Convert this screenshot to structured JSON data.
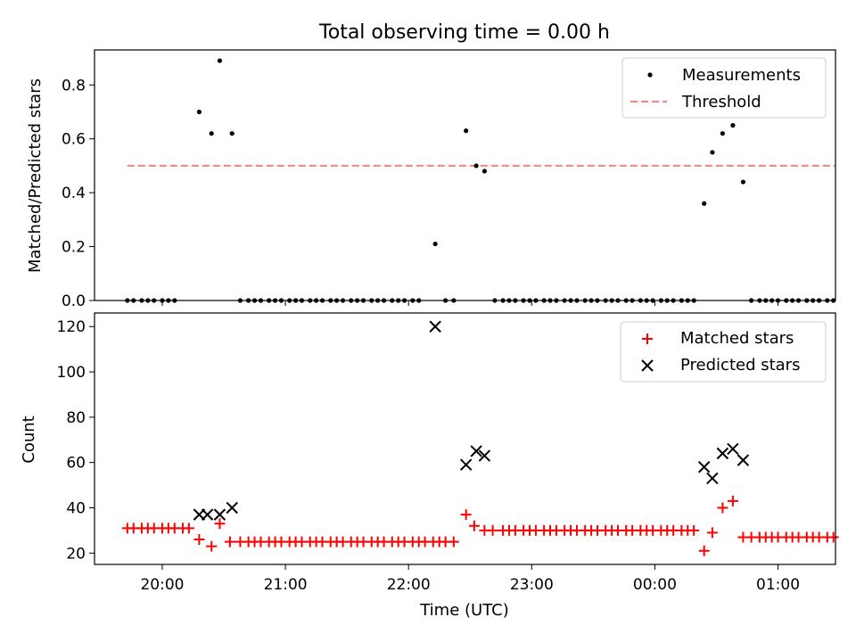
{
  "chart_data": [
    {
      "type": "scatter",
      "title": "Total observing time = 0.00 h",
      "xlabel": "",
      "ylabel": "Matched/Predicted stars",
      "ylim": [
        0,
        0.93
      ],
      "grid": false,
      "legend_position": "top-right",
      "x_ticks": [
        "20:00",
        "21:00",
        "22:00",
        "23:00",
        "00:00",
        "01:00"
      ],
      "y_ticks": [
        "0.0",
        "0.2",
        "0.4",
        "0.6",
        "0.8"
      ],
      "threshold": {
        "name": "Threshold",
        "value": 0.5,
        "x_range": [
          "19:43",
          "01:28"
        ],
        "color": "#ff7f7f",
        "style": "dashed"
      },
      "series": [
        {
          "name": "Measurements",
          "marker": "dot",
          "color": "#000000",
          "points": [
            [
              "19:43",
              0
            ],
            [
              "19:46",
              0
            ],
            [
              "19:50",
              0
            ],
            [
              "19:53",
              0
            ],
            [
              "19:56",
              0
            ],
            [
              "20:00",
              0
            ],
            [
              "20:03",
              0
            ],
            [
              "20:06",
              0
            ],
            [
              "20:18",
              0.7
            ],
            [
              "20:24",
              0.62
            ],
            [
              "20:28",
              0.89
            ],
            [
              "20:34",
              0.62
            ],
            [
              "20:38",
              0
            ],
            [
              "20:42",
              0
            ],
            [
              "20:45",
              0
            ],
            [
              "20:48",
              0
            ],
            [
              "20:52",
              0
            ],
            [
              "20:55",
              0
            ],
            [
              "20:58",
              0
            ],
            [
              "21:02",
              0
            ],
            [
              "21:05",
              0
            ],
            [
              "21:08",
              0
            ],
            [
              "21:12",
              0
            ],
            [
              "21:15",
              0
            ],
            [
              "21:18",
              0
            ],
            [
              "21:22",
              0
            ],
            [
              "21:25",
              0
            ],
            [
              "21:28",
              0
            ],
            [
              "21:32",
              0
            ],
            [
              "21:35",
              0
            ],
            [
              "21:38",
              0
            ],
            [
              "21:42",
              0
            ],
            [
              "21:45",
              0
            ],
            [
              "21:48",
              0
            ],
            [
              "21:52",
              0
            ],
            [
              "21:55",
              0
            ],
            [
              "21:58",
              0
            ],
            [
              "22:02",
              0
            ],
            [
              "22:05",
              0
            ],
            [
              "22:13",
              0.21
            ],
            [
              "22:18",
              0
            ],
            [
              "22:22",
              0
            ],
            [
              "22:28",
              0.63
            ],
            [
              "22:33",
              0.5
            ],
            [
              "22:37",
              0.48
            ],
            [
              "22:42",
              0
            ],
            [
              "22:46",
              0
            ],
            [
              "22:49",
              0
            ],
            [
              "22:52",
              0
            ],
            [
              "22:56",
              0
            ],
            [
              "22:59",
              0
            ],
            [
              "23:02",
              0
            ],
            [
              "23:06",
              0
            ],
            [
              "23:09",
              0
            ],
            [
              "23:12",
              0
            ],
            [
              "23:16",
              0
            ],
            [
              "23:19",
              0
            ],
            [
              "23:22",
              0
            ],
            [
              "23:26",
              0
            ],
            [
              "23:29",
              0
            ],
            [
              "23:32",
              0
            ],
            [
              "23:36",
              0
            ],
            [
              "23:39",
              0
            ],
            [
              "23:42",
              0
            ],
            [
              "23:46",
              0
            ],
            [
              "23:49",
              0
            ],
            [
              "23:53",
              0
            ],
            [
              "23:56",
              0
            ],
            [
              "23:59",
              0
            ],
            [
              "00:03",
              0
            ],
            [
              "00:06",
              0
            ],
            [
              "00:09",
              0
            ],
            [
              "00:13",
              0
            ],
            [
              "00:16",
              0
            ],
            [
              "00:19",
              0
            ],
            [
              "00:24",
              0.36
            ],
            [
              "00:28",
              0.55
            ],
            [
              "00:33",
              0.62
            ],
            [
              "00:38",
              0.65
            ],
            [
              "00:43",
              0.44
            ],
            [
              "00:47",
              0
            ],
            [
              "00:51",
              0
            ],
            [
              "00:54",
              0
            ],
            [
              "00:57",
              0
            ],
            [
              "01:00",
              0
            ],
            [
              "01:04",
              0
            ],
            [
              "01:07",
              0
            ],
            [
              "01:10",
              0
            ],
            [
              "01:14",
              0
            ],
            [
              "01:17",
              0
            ],
            [
              "01:20",
              0
            ],
            [
              "01:24",
              0
            ],
            [
              "01:27",
              0
            ]
          ]
        }
      ]
    },
    {
      "type": "scatter",
      "title": "",
      "xlabel": "Time (UTC)",
      "ylabel": "Count",
      "ylim": [
        15,
        126
      ],
      "grid": false,
      "legend_position": "top-right",
      "x_ticks": [
        "20:00",
        "21:00",
        "22:00",
        "23:00",
        "00:00",
        "01:00"
      ],
      "y_ticks": [
        "20",
        "40",
        "60",
        "80",
        "100",
        "120"
      ],
      "series": [
        {
          "name": "Matched stars",
          "marker": "plus",
          "color": "#ff0000",
          "points": [
            [
              "19:43",
              31
            ],
            [
              "19:46",
              31
            ],
            [
              "19:50",
              31
            ],
            [
              "19:53",
              31
            ],
            [
              "19:56",
              31
            ],
            [
              "20:00",
              31
            ],
            [
              "20:03",
              31
            ],
            [
              "20:06",
              31
            ],
            [
              "20:10",
              31
            ],
            [
              "20:13",
              31
            ],
            [
              "20:18",
              26
            ],
            [
              "20:24",
              23
            ],
            [
              "20:28",
              33
            ],
            [
              "20:33",
              25
            ],
            [
              "20:38",
              25
            ],
            [
              "20:42",
              25
            ],
            [
              "20:45",
              25
            ],
            [
              "20:48",
              25
            ],
            [
              "20:52",
              25
            ],
            [
              "20:55",
              25
            ],
            [
              "20:58",
              25
            ],
            [
              "21:02",
              25
            ],
            [
              "21:05",
              25
            ],
            [
              "21:08",
              25
            ],
            [
              "21:12",
              25
            ],
            [
              "21:15",
              25
            ],
            [
              "21:18",
              25
            ],
            [
              "21:22",
              25
            ],
            [
              "21:25",
              25
            ],
            [
              "21:28",
              25
            ],
            [
              "21:32",
              25
            ],
            [
              "21:35",
              25
            ],
            [
              "21:38",
              25
            ],
            [
              "21:42",
              25
            ],
            [
              "21:45",
              25
            ],
            [
              "21:48",
              25
            ],
            [
              "21:52",
              25
            ],
            [
              "21:55",
              25
            ],
            [
              "21:58",
              25
            ],
            [
              "22:02",
              25
            ],
            [
              "22:05",
              25
            ],
            [
              "22:08",
              25
            ],
            [
              "22:12",
              25
            ],
            [
              "22:15",
              25
            ],
            [
              "22:18",
              25
            ],
            [
              "22:22",
              25
            ],
            [
              "22:28",
              37
            ],
            [
              "22:32",
              32
            ],
            [
              "22:37",
              30
            ],
            [
              "22:41",
              30
            ],
            [
              "22:46",
              30
            ],
            [
              "22:49",
              30
            ],
            [
              "22:52",
              30
            ],
            [
              "22:56",
              30
            ],
            [
              "22:59",
              30
            ],
            [
              "23:02",
              30
            ],
            [
              "23:06",
              30
            ],
            [
              "23:09",
              30
            ],
            [
              "23:12",
              30
            ],
            [
              "23:16",
              30
            ],
            [
              "23:19",
              30
            ],
            [
              "23:22",
              30
            ],
            [
              "23:26",
              30
            ],
            [
              "23:29",
              30
            ],
            [
              "23:32",
              30
            ],
            [
              "23:36",
              30
            ],
            [
              "23:39",
              30
            ],
            [
              "23:42",
              30
            ],
            [
              "23:46",
              30
            ],
            [
              "23:49",
              30
            ],
            [
              "23:53",
              30
            ],
            [
              "23:56",
              30
            ],
            [
              "23:59",
              30
            ],
            [
              "00:03",
              30
            ],
            [
              "00:06",
              30
            ],
            [
              "00:09",
              30
            ],
            [
              "00:13",
              30
            ],
            [
              "00:16",
              30
            ],
            [
              "00:19",
              30
            ],
            [
              "00:24",
              21
            ],
            [
              "00:28",
              29
            ],
            [
              "00:33",
              40
            ],
            [
              "00:38",
              43
            ],
            [
              "00:43",
              27
            ],
            [
              "00:47",
              27
            ],
            [
              "00:51",
              27
            ],
            [
              "00:54",
              27
            ],
            [
              "00:57",
              27
            ],
            [
              "01:00",
              27
            ],
            [
              "01:04",
              27
            ],
            [
              "01:07",
              27
            ],
            [
              "01:10",
              27
            ],
            [
              "01:14",
              27
            ],
            [
              "01:17",
              27
            ],
            [
              "01:20",
              27
            ],
            [
              "01:24",
              27
            ],
            [
              "01:27",
              27
            ]
          ]
        },
        {
          "name": "Predicted stars",
          "marker": "x",
          "color": "#000000",
          "points": [
            [
              "20:18",
              37
            ],
            [
              "20:22",
              37
            ],
            [
              "20:28",
              37
            ],
            [
              "20:34",
              40
            ],
            [
              "22:13",
              120
            ],
            [
              "22:28",
              59
            ],
            [
              "22:33",
              65
            ],
            [
              "22:37",
              63
            ],
            [
              "00:24",
              58
            ],
            [
              "00:28",
              53
            ],
            [
              "00:33",
              64
            ],
            [
              "00:38",
              66
            ],
            [
              "00:43",
              61
            ]
          ]
        }
      ]
    }
  ]
}
